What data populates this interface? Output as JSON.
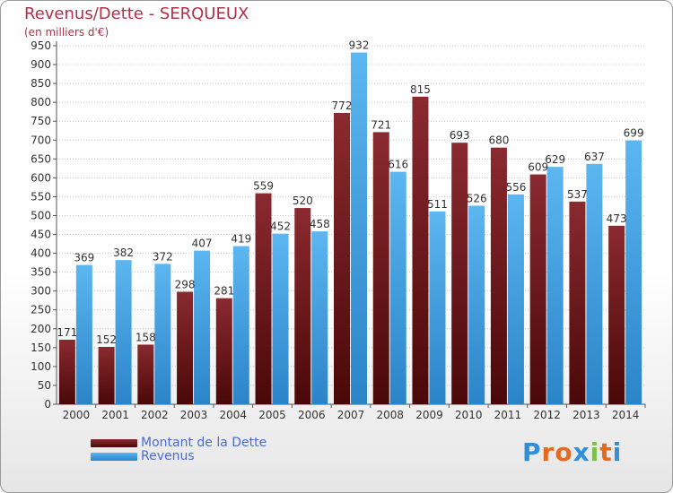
{
  "title": "Revenus/Dette - SERQUEUX",
  "subtitle": "(en milliers d'€)",
  "colors": {
    "dette": "#7a1c22",
    "revenus": "#4aa6e6",
    "title": "#b03048",
    "legend_text": "#4a6bd6"
  },
  "legend": [
    {
      "label": "Montant de la Dette",
      "color": "#7a1c22"
    },
    {
      "label": "Revenus",
      "color": "#4aa6e6"
    }
  ],
  "logo": {
    "letters": [
      "P",
      "r",
      "o",
      "x",
      "i",
      "t",
      "i"
    ],
    "colors": [
      "#2f8fd8",
      "#e36a1f",
      "#e36a1f",
      "#2f8fd8",
      "#7cc04b",
      "#e36a1f",
      "#2f8fd8"
    ]
  },
  "chart_data": {
    "type": "bar",
    "title": "Revenus/Dette - SERQUEUX",
    "subtitle": "(en milliers d'€)",
    "categories": [
      "2000",
      "2001",
      "2002",
      "2003",
      "2004",
      "2005",
      "2006",
      "2007",
      "2008",
      "2009",
      "2010",
      "2011",
      "2012",
      "2013",
      "2014"
    ],
    "series": [
      {
        "name": "Montant de la Dette",
        "values": [
          171,
          152,
          158,
          298,
          281,
          559,
          520,
          772,
          721,
          815,
          693,
          680,
          609,
          537,
          473
        ]
      },
      {
        "name": "Revenus",
        "values": [
          369,
          382,
          372,
          407,
          419,
          452,
          458,
          932,
          616,
          511,
          526,
          556,
          629,
          637,
          699
        ]
      }
    ],
    "ylim": [
      0,
      950
    ],
    "ytick_step": 50,
    "grid": true,
    "legend_position": "bottom-left"
  }
}
